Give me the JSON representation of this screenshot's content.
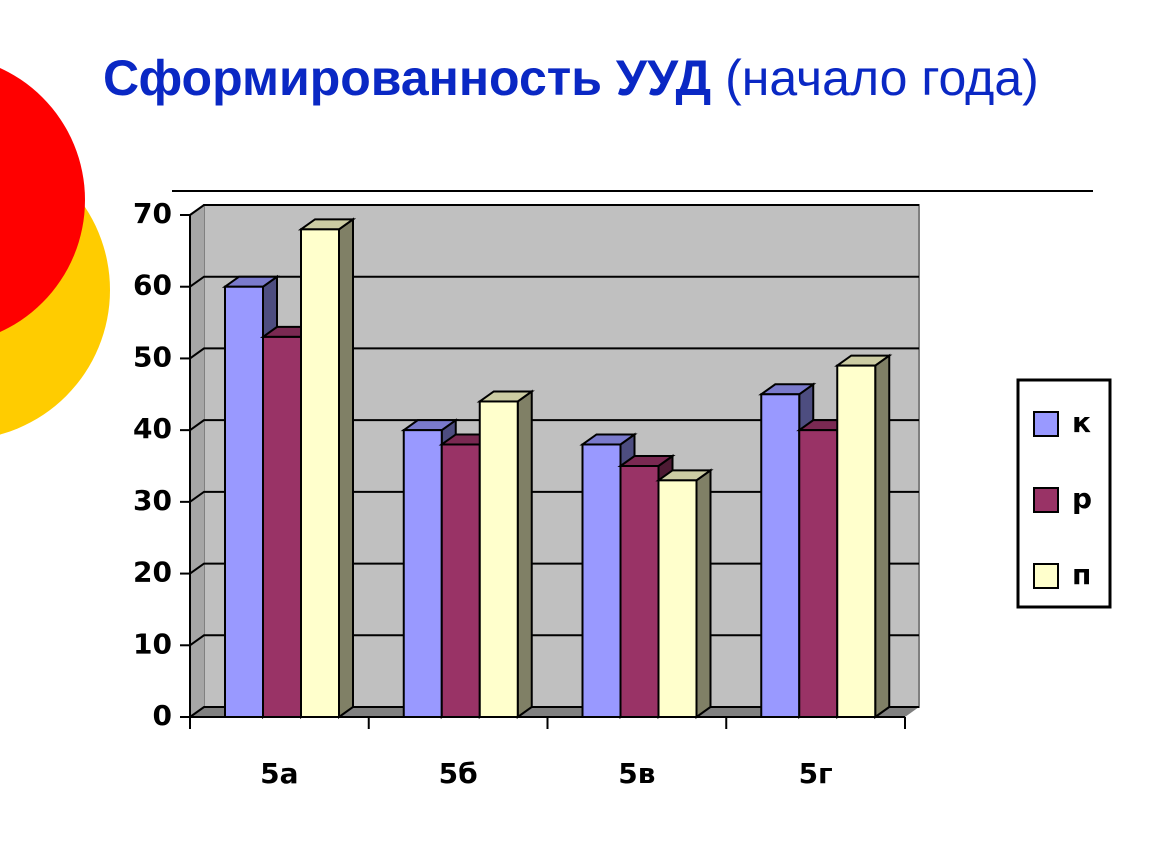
{
  "chart_data": {
    "type": "bar",
    "title": "Сформированность УУД",
    "subtitle": "(начало года)",
    "categories": [
      "5а",
      "5б",
      "5в",
      "5г"
    ],
    "series": [
      {
        "name": "к",
        "color": "#9999ff",
        "values": [
          60,
          40,
          38,
          45
        ]
      },
      {
        "name": "р",
        "color": "#993366",
        "values": [
          53,
          38,
          35,
          40
        ]
      },
      {
        "name": "п",
        "color": "#ffffcc",
        "values": [
          68,
          44,
          33,
          49
        ]
      }
    ],
    "ylim": [
      0,
      70
    ],
    "yticks": [
      0,
      10,
      20,
      30,
      40,
      50,
      60,
      70
    ],
    "grid": true,
    "legend": "right"
  }
}
